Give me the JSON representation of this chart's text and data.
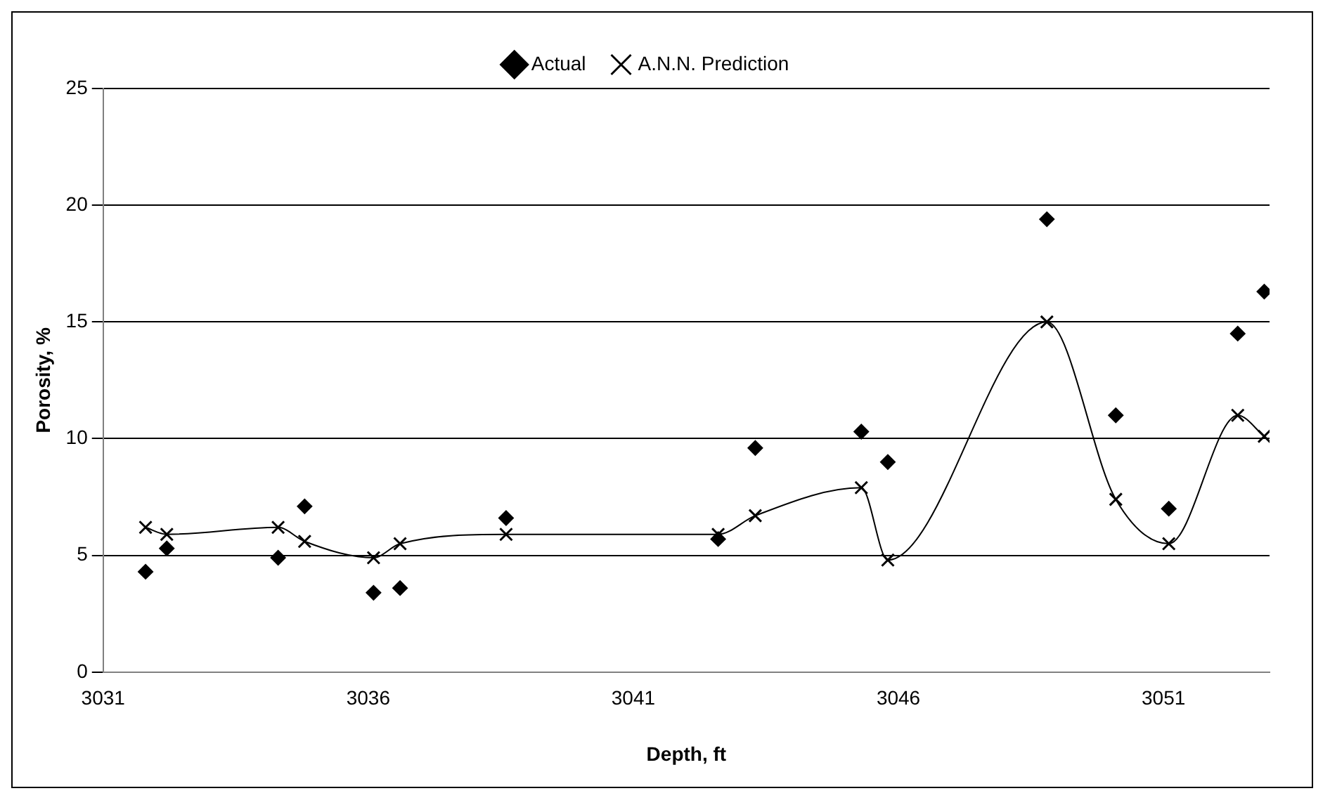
{
  "chart_data": {
    "type": "scatter",
    "xlabel": "Depth, ft",
    "ylabel": "Porosity, %",
    "xlim": [
      3031,
      3053
    ],
    "xticks": [
      3031,
      3036,
      3041,
      3046,
      3051
    ],
    "ylim": [
      0,
      25
    ],
    "yticks": [
      0,
      5,
      10,
      15,
      20,
      25
    ],
    "grid": "y",
    "legend": "top",
    "series": [
      {
        "name": "Actual",
        "marker": "diamond",
        "color": "#000000",
        "x": [
          3031.8,
          3032.2,
          3034.3,
          3034.8,
          3036.1,
          3036.6,
          3038.6,
          3042.6,
          3043.3,
          3045.3,
          3045.8,
          3048.8,
          3050.1,
          3051.1,
          3052.4,
          3052.9
        ],
        "values": [
          4.3,
          5.3,
          4.9,
          7.1,
          3.4,
          3.6,
          6.6,
          5.7,
          9.6,
          10.3,
          9.0,
          19.4,
          11.0,
          7.0,
          14.5,
          16.3
        ]
      },
      {
        "name": "A.N.N. Prediction",
        "type": "line",
        "marker": "cross",
        "line_style": "solid",
        "color": "#000000",
        "x": [
          3031.8,
          3032.2,
          3034.3,
          3034.8,
          3036.1,
          3036.6,
          3038.6,
          3042.6,
          3043.3,
          3045.3,
          3045.8,
          3048.8,
          3050.1,
          3051.1,
          3052.4,
          3052.9
        ],
        "values": [
          6.2,
          5.9,
          6.2,
          5.6,
          4.9,
          5.5,
          5.9,
          5.9,
          6.7,
          7.9,
          4.8,
          15.0,
          7.4,
          5.5,
          11.0,
          10.1
        ]
      }
    ]
  }
}
